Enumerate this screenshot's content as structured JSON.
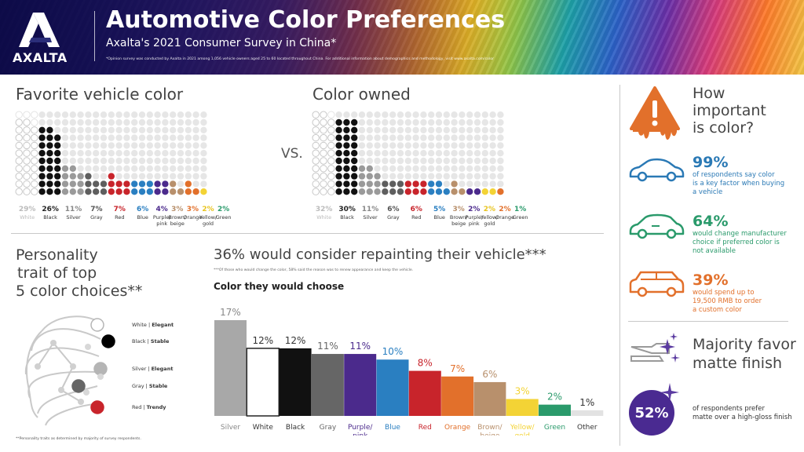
{
  "header": {
    "logo_text": "AXALTA",
    "title": "Automotive Color Preferences",
    "subtitle": "Axalta's 2021 Consumer Survey in China*",
    "survey_note": "*Opinion survey was conducted by Axalta in 2021 among 1,056 vehicle owners aged 25 to 60 located throughout China. For additional information about demographics and methodology, visit www.axalta.com/color"
  },
  "favorite": {
    "title": "Favorite vehicle color",
    "vs_label": "VS."
  },
  "owned": {
    "title": "Color owned"
  },
  "personality": {
    "title_lines": [
      "Personality",
      "trait of top",
      "5 color choices**"
    ],
    "traits": [
      {
        "color_name": "White",
        "trait": "Elegant",
        "swatch": "#ffffff"
      },
      {
        "color_name": "Black",
        "trait": "Stable",
        "swatch": "#000000"
      },
      {
        "color_name": "Silver",
        "trait": "Elegant",
        "swatch": "#b5b5b5"
      },
      {
        "color_name": "Gray",
        "trait": "Stable",
        "swatch": "#666666"
      },
      {
        "color_name": "Red",
        "trait": "Trendy",
        "swatch": "#c8242b"
      }
    ],
    "note": "**Personality traits as determined by majority of survey respondents."
  },
  "repaint": {
    "title": "36% would consider repainting their vehicle***",
    "note": "***Of those who would change the color, 58% said the reason was to renew appearance and keep the vehicle.",
    "chart_title": "Color they would choose"
  },
  "importance": {
    "title_lines": [
      "How",
      "important",
      "is color?"
    ],
    "stats": [
      {
        "value": "99%",
        "text_lines": [
          "of respondents say color",
          "is a key factor when buying",
          "a vehicle"
        ],
        "color": "#2a79b5"
      },
      {
        "value": "64%",
        "text_lines": [
          "would change manufacturer",
          "choice if preferred color is",
          "not available"
        ],
        "color": "#2a9a6b"
      },
      {
        "value": "39%",
        "text_lines": [
          "would spend up to",
          "19,500 RMB to order",
          "a custom color"
        ],
        "color": "#e2702b"
      }
    ]
  },
  "matte": {
    "title_lines": [
      "Majority favor",
      "matte finish"
    ],
    "value": "52%",
    "text_lines": [
      "of respondents prefer",
      "matte over a high-gloss finish"
    ]
  },
  "chart_data": [
    {
      "type": "bar",
      "title": "Favorite vehicle color",
      "categories": [
        "White",
        "Black",
        "Silver",
        "Gray",
        "Red",
        "Blue",
        "Purple/ pink",
        "Brown/ beige",
        "Orange",
        "Yellow/ gold",
        "Green"
      ],
      "values": [
        29,
        26,
        11,
        7,
        7,
        6,
        4,
        3,
        3,
        2,
        2
      ],
      "value_labels": [
        "29%",
        "26%",
        "11%",
        "7%",
        "7%",
        "6%",
        "4%",
        "3%",
        "3%",
        "2%",
        "2%"
      ],
      "colors": [
        "#ffffff",
        "#111111",
        "#9a9a9a",
        "#5e5e5e",
        "#c8242b",
        "#2a7fc1",
        "#4b2a8c",
        "#b8906c",
        "#e2702b",
        "#f3d335",
        "#2a9a6b"
      ],
      "rendering": "dot columns, one dot per percent"
    },
    {
      "type": "bar",
      "title": "Color owned",
      "categories": [
        "White",
        "Black",
        "Silver",
        "Gray",
        "Red",
        "Blue",
        "Brown/ beige",
        "Purple/ pink",
        "Yellow/ gold",
        "Orange",
        "Green"
      ],
      "values": [
        32,
        30,
        11,
        6,
        6,
        5,
        3,
        2,
        2,
        2,
        1
      ],
      "value_labels": [
        "32%",
        "30%",
        "11%",
        "6%",
        "6%",
        "5%",
        "3%",
        "2%",
        "2%",
        "2%",
        "1%"
      ],
      "colors": [
        "#ffffff",
        "#111111",
        "#9a9a9a",
        "#5e5e5e",
        "#c8242b",
        "#2a7fc1",
        "#b8906c",
        "#4b2a8c",
        "#f3d335",
        "#e2702b",
        "#2a9a6b"
      ],
      "rendering": "dot columns, one dot per percent"
    },
    {
      "type": "bar",
      "title": "Color they would choose",
      "categories": [
        "Silver",
        "White",
        "Black",
        "Gray",
        "Purple/ pink",
        "Blue",
        "Red",
        "Orange",
        "Brown/ beige",
        "Yellow/ gold",
        "Green",
        "Other"
      ],
      "values": [
        17,
        12,
        12,
        11,
        11,
        10,
        8,
        7,
        6,
        3,
        2,
        1
      ],
      "value_labels": [
        "17%",
        "12%",
        "12%",
        "11%",
        "11%",
        "10%",
        "8%",
        "7%",
        "6%",
        "3%",
        "2%",
        "1%"
      ],
      "colors": [
        "#a8a8a8",
        "#ffffff",
        "#111111",
        "#666666",
        "#4b2a8c",
        "#2a7fc1",
        "#c8242b",
        "#e2702b",
        "#b8906c",
        "#f3d335",
        "#2a9a6b",
        "#dddddd"
      ],
      "label_colors": [
        "#888888",
        "#333333",
        "#333333",
        "#666666",
        "#4b2a8c",
        "#2a7fc1",
        "#c8242b",
        "#e2702b",
        "#b8906c",
        "#f3d335",
        "#2a9a6b",
        "#333333"
      ],
      "ylim": [
        0,
        17
      ]
    }
  ]
}
